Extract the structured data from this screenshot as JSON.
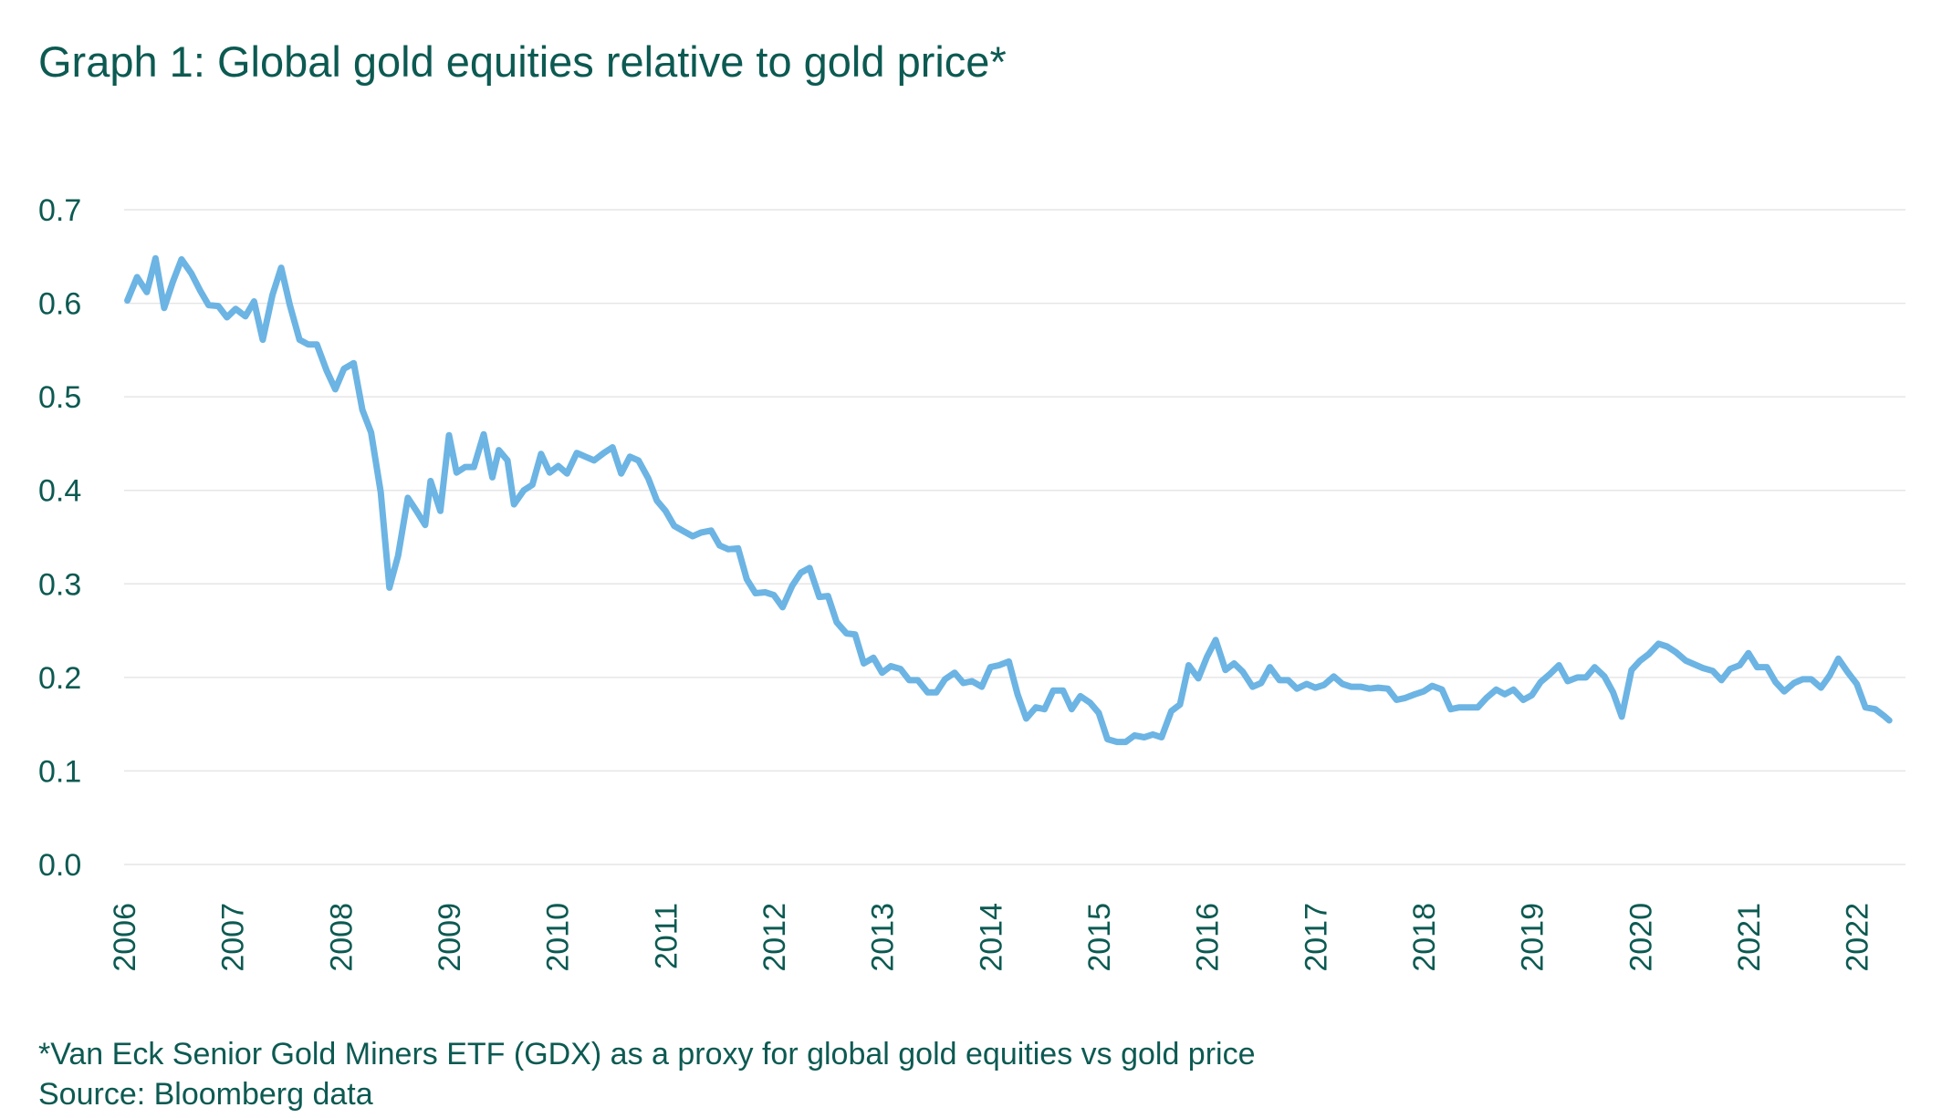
{
  "title": "Graph 1: Global gold equities relative to gold price*",
  "footnote": "*Van Eck Senior Gold Miners ETF (GDX) as a proxy for global gold equities vs gold price",
  "source": "Source: Bloomberg data",
  "colors": {
    "line": "#6cb4e3",
    "text": "#0c5a52",
    "grid": "#e6e6e6"
  },
  "chart_data": {
    "type": "line",
    "title": "Graph 1: Global gold equities relative to gold price*",
    "xlabel": "",
    "ylabel": "",
    "xlim": [
      2006.0,
      2022.5
    ],
    "ylim": [
      0.0,
      0.7
    ],
    "grid": true,
    "legend": "none",
    "x_ticks": [
      "2006",
      "2007",
      "2008",
      "2009",
      "2010",
      "2011",
      "2012",
      "2013",
      "2014",
      "2015",
      "2016",
      "2017",
      "2018",
      "2019",
      "2020",
      "2021",
      "2022"
    ],
    "y_ticks": [
      "0.0",
      "0.1",
      "0.2",
      "0.3",
      "0.4",
      "0.5",
      "0.6",
      "0.7"
    ],
    "series": [
      {
        "points": [
          [
            2006.03,
            0.603
          ],
          [
            2006.12,
            0.628
          ],
          [
            2006.21,
            0.612
          ],
          [
            2006.29,
            0.648
          ],
          [
            2006.37,
            0.595
          ],
          [
            2006.45,
            0.623
          ],
          [
            2006.53,
            0.647
          ],
          [
            2006.62,
            0.632
          ],
          [
            2006.7,
            0.614
          ],
          [
            2006.78,
            0.598
          ],
          [
            2006.87,
            0.597
          ],
          [
            2006.95,
            0.585
          ],
          [
            2007.03,
            0.594
          ],
          [
            2007.12,
            0.586
          ],
          [
            2007.2,
            0.602
          ],
          [
            2007.28,
            0.561
          ],
          [
            2007.37,
            0.609
          ],
          [
            2007.45,
            0.638
          ],
          [
            2007.53,
            0.598
          ],
          [
            2007.62,
            0.561
          ],
          [
            2007.7,
            0.556
          ],
          [
            2007.78,
            0.556
          ],
          [
            2007.87,
            0.528
          ],
          [
            2007.95,
            0.508
          ],
          [
            2008.03,
            0.53
          ],
          [
            2008.12,
            0.536
          ],
          [
            2008.2,
            0.486
          ],
          [
            2008.28,
            0.462
          ],
          [
            2008.37,
            0.398
          ],
          [
            2008.45,
            0.296
          ],
          [
            2008.53,
            0.33
          ],
          [
            2008.62,
            0.392
          ],
          [
            2008.7,
            0.378
          ],
          [
            2008.78,
            0.363
          ],
          [
            2008.83,
            0.41
          ],
          [
            2008.92,
            0.378
          ],
          [
            2009.0,
            0.459
          ],
          [
            2009.07,
            0.419
          ],
          [
            2009.15,
            0.425
          ],
          [
            2009.23,
            0.425
          ],
          [
            2009.32,
            0.46
          ],
          [
            2009.4,
            0.414
          ],
          [
            2009.46,
            0.443
          ],
          [
            2009.54,
            0.432
          ],
          [
            2009.6,
            0.385
          ],
          [
            2009.69,
            0.4
          ],
          [
            2009.77,
            0.406
          ],
          [
            2009.85,
            0.439
          ],
          [
            2009.93,
            0.419
          ],
          [
            2010.01,
            0.426
          ],
          [
            2010.09,
            0.418
          ],
          [
            2010.18,
            0.44
          ],
          [
            2010.26,
            0.436
          ],
          [
            2010.34,
            0.432
          ],
          [
            2010.43,
            0.44
          ],
          [
            2010.51,
            0.446
          ],
          [
            2010.59,
            0.418
          ],
          [
            2010.67,
            0.436
          ],
          [
            2010.75,
            0.432
          ],
          [
            2010.84,
            0.413
          ],
          [
            2010.92,
            0.389
          ],
          [
            2011.0,
            0.378
          ],
          [
            2011.08,
            0.362
          ],
          [
            2011.17,
            0.356
          ],
          [
            2011.25,
            0.351
          ],
          [
            2011.33,
            0.355
          ],
          [
            2011.42,
            0.357
          ],
          [
            2011.5,
            0.341
          ],
          [
            2011.58,
            0.337
          ],
          [
            2011.67,
            0.338
          ],
          [
            2011.75,
            0.305
          ],
          [
            2011.83,
            0.29
          ],
          [
            2011.92,
            0.291
          ],
          [
            2012.0,
            0.288
          ],
          [
            2012.08,
            0.275
          ],
          [
            2012.17,
            0.298
          ],
          [
            2012.25,
            0.312
          ],
          [
            2012.33,
            0.317
          ],
          [
            2012.42,
            0.286
          ],
          [
            2012.5,
            0.287
          ],
          [
            2012.58,
            0.259
          ],
          [
            2012.67,
            0.247
          ],
          [
            2012.75,
            0.246
          ],
          [
            2012.83,
            0.215
          ],
          [
            2012.92,
            0.221
          ],
          [
            2013.0,
            0.205
          ],
          [
            2013.08,
            0.212
          ],
          [
            2013.17,
            0.209
          ],
          [
            2013.25,
            0.197
          ],
          [
            2013.33,
            0.197
          ],
          [
            2013.42,
            0.184
          ],
          [
            2013.5,
            0.184
          ],
          [
            2013.58,
            0.198
          ],
          [
            2013.67,
            0.205
          ],
          [
            2013.75,
            0.194
          ],
          [
            2013.83,
            0.196
          ],
          [
            2013.92,
            0.19
          ],
          [
            2014.0,
            0.211
          ],
          [
            2014.08,
            0.213
          ],
          [
            2014.17,
            0.217
          ],
          [
            2014.25,
            0.182
          ],
          [
            2014.33,
            0.156
          ],
          [
            2014.42,
            0.168
          ],
          [
            2014.5,
            0.166
          ],
          [
            2014.58,
            0.186
          ],
          [
            2014.67,
            0.186
          ],
          [
            2014.75,
            0.166
          ],
          [
            2014.83,
            0.18
          ],
          [
            2014.92,
            0.173
          ],
          [
            2015.0,
            0.162
          ],
          [
            2015.08,
            0.134
          ],
          [
            2015.17,
            0.131
          ],
          [
            2015.25,
            0.131
          ],
          [
            2015.33,
            0.138
          ],
          [
            2015.42,
            0.136
          ],
          [
            2015.5,
            0.139
          ],
          [
            2015.58,
            0.136
          ],
          [
            2015.67,
            0.164
          ],
          [
            2015.75,
            0.171
          ],
          [
            2015.83,
            0.213
          ],
          [
            2015.92,
            0.199
          ],
          [
            2016.0,
            0.222
          ],
          [
            2016.08,
            0.24
          ],
          [
            2016.17,
            0.208
          ],
          [
            2016.25,
            0.215
          ],
          [
            2016.33,
            0.206
          ],
          [
            2016.42,
            0.19
          ],
          [
            2016.5,
            0.194
          ],
          [
            2016.58,
            0.211
          ],
          [
            2016.67,
            0.197
          ],
          [
            2016.75,
            0.197
          ],
          [
            2016.83,
            0.188
          ],
          [
            2016.92,
            0.193
          ],
          [
            2017.0,
            0.189
          ],
          [
            2017.08,
            0.192
          ],
          [
            2017.17,
            0.201
          ],
          [
            2017.25,
            0.193
          ],
          [
            2017.33,
            0.19
          ],
          [
            2017.42,
            0.19
          ],
          [
            2017.5,
            0.188
          ],
          [
            2017.58,
            0.189
          ],
          [
            2017.67,
            0.188
          ],
          [
            2017.75,
            0.176
          ],
          [
            2017.83,
            0.178
          ],
          [
            2017.92,
            0.182
          ],
          [
            2018.0,
            0.185
          ],
          [
            2018.08,
            0.191
          ],
          [
            2018.17,
            0.187
          ],
          [
            2018.25,
            0.166
          ],
          [
            2018.33,
            0.168
          ],
          [
            2018.42,
            0.168
          ],
          [
            2018.5,
            0.168
          ],
          [
            2018.58,
            0.178
          ],
          [
            2018.67,
            0.187
          ],
          [
            2018.75,
            0.182
          ],
          [
            2018.83,
            0.187
          ],
          [
            2018.92,
            0.176
          ],
          [
            2019.0,
            0.181
          ],
          [
            2019.08,
            0.195
          ],
          [
            2019.17,
            0.204
          ],
          [
            2019.25,
            0.213
          ],
          [
            2019.33,
            0.196
          ],
          [
            2019.42,
            0.2
          ],
          [
            2019.5,
            0.2
          ],
          [
            2019.58,
            0.211
          ],
          [
            2019.67,
            0.201
          ],
          [
            2019.75,
            0.184
          ],
          [
            2019.83,
            0.158
          ],
          [
            2019.92,
            0.208
          ],
          [
            2020.0,
            0.218
          ],
          [
            2020.08,
            0.225
          ],
          [
            2020.17,
            0.236
          ],
          [
            2020.25,
            0.233
          ],
          [
            2020.33,
            0.227
          ],
          [
            2020.42,
            0.218
          ],
          [
            2020.5,
            0.214
          ],
          [
            2020.58,
            0.21
          ],
          [
            2020.67,
            0.207
          ],
          [
            2020.75,
            0.197
          ],
          [
            2020.83,
            0.209
          ],
          [
            2020.92,
            0.213
          ],
          [
            2021.0,
            0.226
          ],
          [
            2021.08,
            0.211
          ],
          [
            2021.17,
            0.211
          ],
          [
            2021.25,
            0.195
          ],
          [
            2021.33,
            0.185
          ],
          [
            2021.42,
            0.194
          ],
          [
            2021.5,
            0.198
          ],
          [
            2021.58,
            0.198
          ],
          [
            2021.67,
            0.189
          ],
          [
            2021.75,
            0.202
          ],
          [
            2021.83,
            0.22
          ],
          [
            2021.92,
            0.205
          ],
          [
            2022.0,
            0.193
          ],
          [
            2022.08,
            0.168
          ],
          [
            2022.17,
            0.166
          ],
          [
            2022.25,
            0.159
          ],
          [
            2022.3,
            0.154
          ]
        ]
      }
    ]
  }
}
